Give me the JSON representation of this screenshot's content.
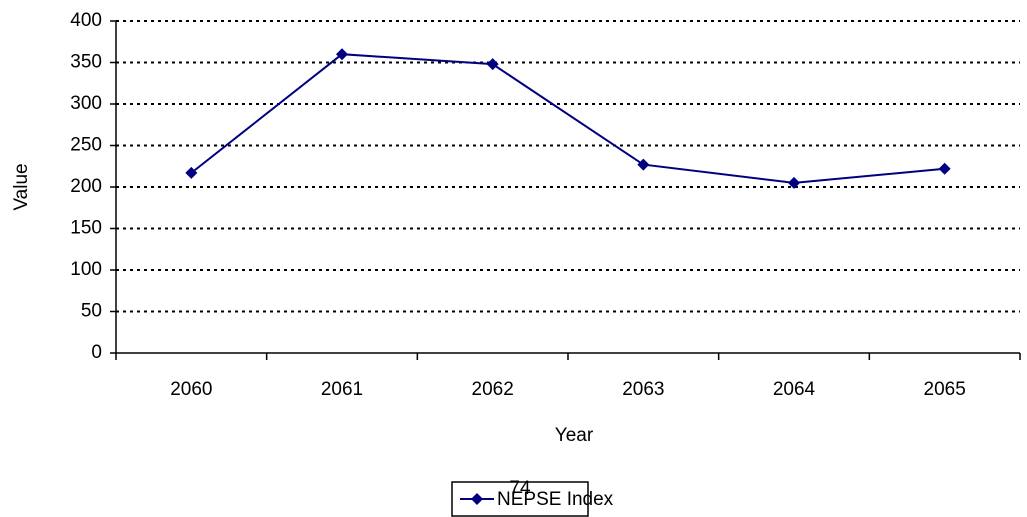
{
  "chart_data": {
    "type": "line",
    "categories": [
      "2060",
      "2061",
      "2062",
      "2063",
      "2064",
      "2065"
    ],
    "series": [
      {
        "name": "NEPSE Index",
        "color": "#000080",
        "values": [
          217,
          360,
          348,
          227,
          205,
          222
        ]
      }
    ],
    "x_label": "Year",
    "y_label": "Value",
    "ylim": [
      0,
      400
    ],
    "yticks": [
      0,
      50,
      100,
      150,
      200,
      250,
      300,
      350,
      400
    ],
    "grid": true,
    "legend": "bottom"
  },
  "page_number": "74"
}
